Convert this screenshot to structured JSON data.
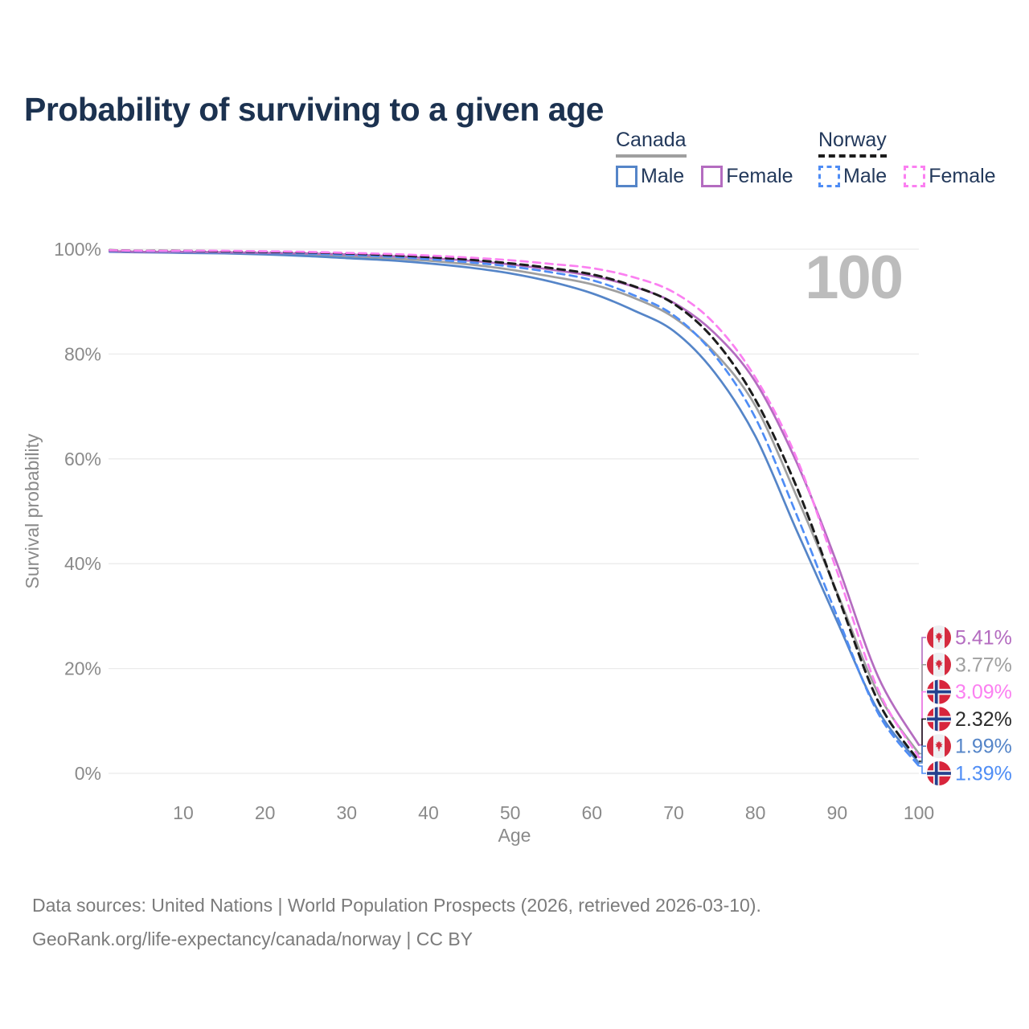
{
  "title": "Probability of surviving to a given age",
  "watermark": "100",
  "legend": {
    "groups": [
      {
        "label": "Canada",
        "underline_color": "#9f9f9f",
        "dashed": false,
        "items": [
          {
            "label": "Male",
            "color": "#5585c8"
          },
          {
            "label": "Female",
            "color": "#b46cc0"
          }
        ]
      },
      {
        "label": "Norway",
        "underline_color": "#1c1c1c",
        "dashed": true,
        "items": [
          {
            "label": "Male",
            "color": "#4f8df5"
          },
          {
            "label": "Female",
            "color": "#fb80f1"
          }
        ]
      }
    ]
  },
  "chart_data": {
    "type": "line",
    "title": "Probability of surviving to a given age",
    "xlabel": "Age",
    "ylabel": "Survival probability",
    "xlim": [
      1,
      100
    ],
    "ylim": [
      0,
      100
    ],
    "grid": "horizontal",
    "legend_position": "top-right",
    "x_ticks": [
      10,
      20,
      30,
      40,
      50,
      60,
      70,
      80,
      90,
      100
    ],
    "y_ticks": [
      "0%",
      "20%",
      "40%",
      "60%",
      "80%",
      "100%"
    ],
    "x": [
      1,
      5,
      10,
      15,
      20,
      25,
      30,
      35,
      40,
      45,
      50,
      55,
      60,
      65,
      70,
      75,
      80,
      85,
      90,
      95,
      100
    ],
    "series": [
      {
        "name": "Canada Both sexes",
        "country": "Canada",
        "sex": "Both",
        "color": "#9f9f9f",
        "label_color": "#a0a0a0",
        "dashed": false,
        "flag": "canada",
        "end_label": "3.77%",
        "values": [
          99.6,
          99.5,
          99.5,
          99.4,
          99.2,
          99.0,
          98.7,
          98.3,
          97.8,
          97.1,
          96.1,
          94.8,
          93.3,
          90.8,
          87.0,
          80.3,
          70.1,
          53.0,
          34.5,
          15.3,
          3.77
        ]
      },
      {
        "name": "Canada Male",
        "country": "Canada",
        "sex": "Male",
        "color": "#5585c8",
        "label_color": "#5585c8",
        "dashed": false,
        "flag": "canada",
        "end_label": "1.99%",
        "values": [
          99.5,
          99.4,
          99.3,
          99.2,
          99.0,
          98.7,
          98.3,
          97.9,
          97.3,
          96.5,
          95.4,
          93.8,
          91.6,
          88.4,
          84.4,
          76.5,
          64.3,
          46.5,
          29.0,
          12.0,
          1.99
        ]
      },
      {
        "name": "Canada Female",
        "country": "Canada",
        "sex": "Female",
        "color": "#b46cc0",
        "label_color": "#b46cc0",
        "dashed": false,
        "flag": "canada",
        "end_label": "5.41%",
        "values": [
          99.6,
          99.5,
          99.5,
          99.4,
          99.3,
          99.2,
          99.0,
          98.7,
          98.3,
          97.8,
          97.1,
          96.1,
          94.9,
          92.9,
          89.8,
          84.0,
          74.7,
          59.5,
          40.0,
          18.5,
          5.41
        ]
      },
      {
        "name": "Norway Male",
        "country": "Norway",
        "sex": "Male",
        "color": "#4f8df5",
        "label_color": "#4f8df5",
        "dashed": true,
        "flag": "norway",
        "end_label": "1.39%",
        "values": [
          99.7,
          99.6,
          99.6,
          99.5,
          99.4,
          99.2,
          98.9,
          98.6,
          98.1,
          97.5,
          96.7,
          95.6,
          94.1,
          91.3,
          87.4,
          79.8,
          67.8,
          49.5,
          30.0,
          11.5,
          1.39
        ]
      },
      {
        "name": "Norway Both sexes",
        "country": "Norway",
        "sex": "Both",
        "color": "#1c1c1c",
        "label_color": "#2b2b2b",
        "dashed": true,
        "flag": "norway",
        "end_label": "2.32%",
        "values": [
          99.8,
          99.7,
          99.7,
          99.6,
          99.5,
          99.4,
          99.2,
          98.9,
          98.5,
          98.0,
          97.3,
          96.4,
          95.2,
          93.0,
          89.6,
          82.7,
          71.3,
          54.8,
          34.2,
          13.8,
          2.32
        ]
      },
      {
        "name": "Norway Female",
        "country": "Norway",
        "sex": "Female",
        "color": "#fb80f1",
        "label_color": "#fb80f1",
        "dashed": true,
        "flag": "norway",
        "end_label": "3.09%",
        "values": [
          99.8,
          99.7,
          99.7,
          99.7,
          99.6,
          99.5,
          99.3,
          99.1,
          98.8,
          98.4,
          97.9,
          97.2,
          96.4,
          94.7,
          91.8,
          85.8,
          75.5,
          60.3,
          38.5,
          16.0,
          3.09
        ]
      }
    ]
  },
  "footer": {
    "line1": "Data sources: United Nations | World Population Prospects (2026, retrieved 2026-03-10).",
    "line2": "GeoRank.org/life-expectancy/canada/norway | CC BY"
  }
}
